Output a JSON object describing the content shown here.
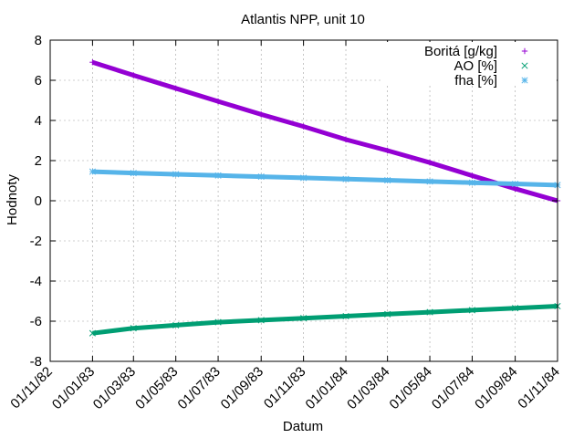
{
  "chart_data": {
    "type": "line",
    "title": "Atlantis NPP, unit 10",
    "xlabel": "Datum",
    "ylabel": "Hodnoty",
    "xlim": [
      "1982-11-01",
      "1984-11-01"
    ],
    "ylim": [
      -8,
      8
    ],
    "grid": true,
    "legend_position": "top-right",
    "x_ticks": [
      "1982-11-01",
      "1983-01-01",
      "1983-03-01",
      "1983-05-01",
      "1983-07-01",
      "1983-09-01",
      "1983-11-01",
      "1984-01-01",
      "1984-03-01",
      "1984-05-01",
      "1984-07-01",
      "1984-09-01",
      "1984-11-01"
    ],
    "x_tick_labels": [
      "01/11/82",
      "01/01/83",
      "01/03/83",
      "01/05/83",
      "01/07/83",
      "01/09/83",
      "01/11/83",
      "01/01/84",
      "01/03/84",
      "01/05/84",
      "01/07/84",
      "01/09/84",
      "01/11/84"
    ],
    "y_ticks": [
      -8,
      -6,
      -4,
      -2,
      0,
      2,
      4,
      6,
      8
    ],
    "y_tick_labels": [
      "-8",
      "-6",
      "-4",
      "-2",
      "0",
      "2",
      "4",
      "6",
      "8"
    ],
    "series": [
      {
        "name": "Boritá [g/kg]",
        "color": "#9400d3",
        "marker": "plus",
        "x": [
          "1983-01-01",
          "1983-03-01",
          "1983-05-01",
          "1983-07-01",
          "1983-09-01",
          "1983-11-01",
          "1984-01-01",
          "1984-03-01",
          "1984-05-01",
          "1984-07-01",
          "1984-09-01",
          "1984-11-01"
        ],
        "values": [
          6.9,
          6.25,
          5.6,
          4.95,
          4.3,
          3.7,
          3.05,
          2.5,
          1.9,
          1.25,
          0.6,
          0.0
        ]
      },
      {
        "name": "AO [%]",
        "color": "#009e73",
        "marker": "x",
        "x": [
          "1983-01-01",
          "1983-03-01",
          "1983-05-01",
          "1983-07-01",
          "1983-09-01",
          "1983-11-01",
          "1984-01-01",
          "1984-03-01",
          "1984-05-01",
          "1984-07-01",
          "1984-09-01",
          "1984-11-01"
        ],
        "values": [
          -6.6,
          -6.35,
          -6.2,
          -6.05,
          -5.95,
          -5.85,
          -5.75,
          -5.65,
          -5.55,
          -5.45,
          -5.35,
          -5.25
        ]
      },
      {
        "name": "fha [%]",
        "color": "#56b4e9",
        "marker": "star",
        "x": [
          "1983-01-01",
          "1983-03-01",
          "1983-05-01",
          "1983-07-01",
          "1983-09-01",
          "1983-11-01",
          "1984-01-01",
          "1984-03-01",
          "1984-05-01",
          "1984-07-01",
          "1984-09-01",
          "1984-11-01"
        ],
        "values": [
          1.45,
          1.38,
          1.32,
          1.26,
          1.2,
          1.14,
          1.08,
          1.02,
          0.96,
          0.9,
          0.84,
          0.78
        ]
      }
    ]
  }
}
